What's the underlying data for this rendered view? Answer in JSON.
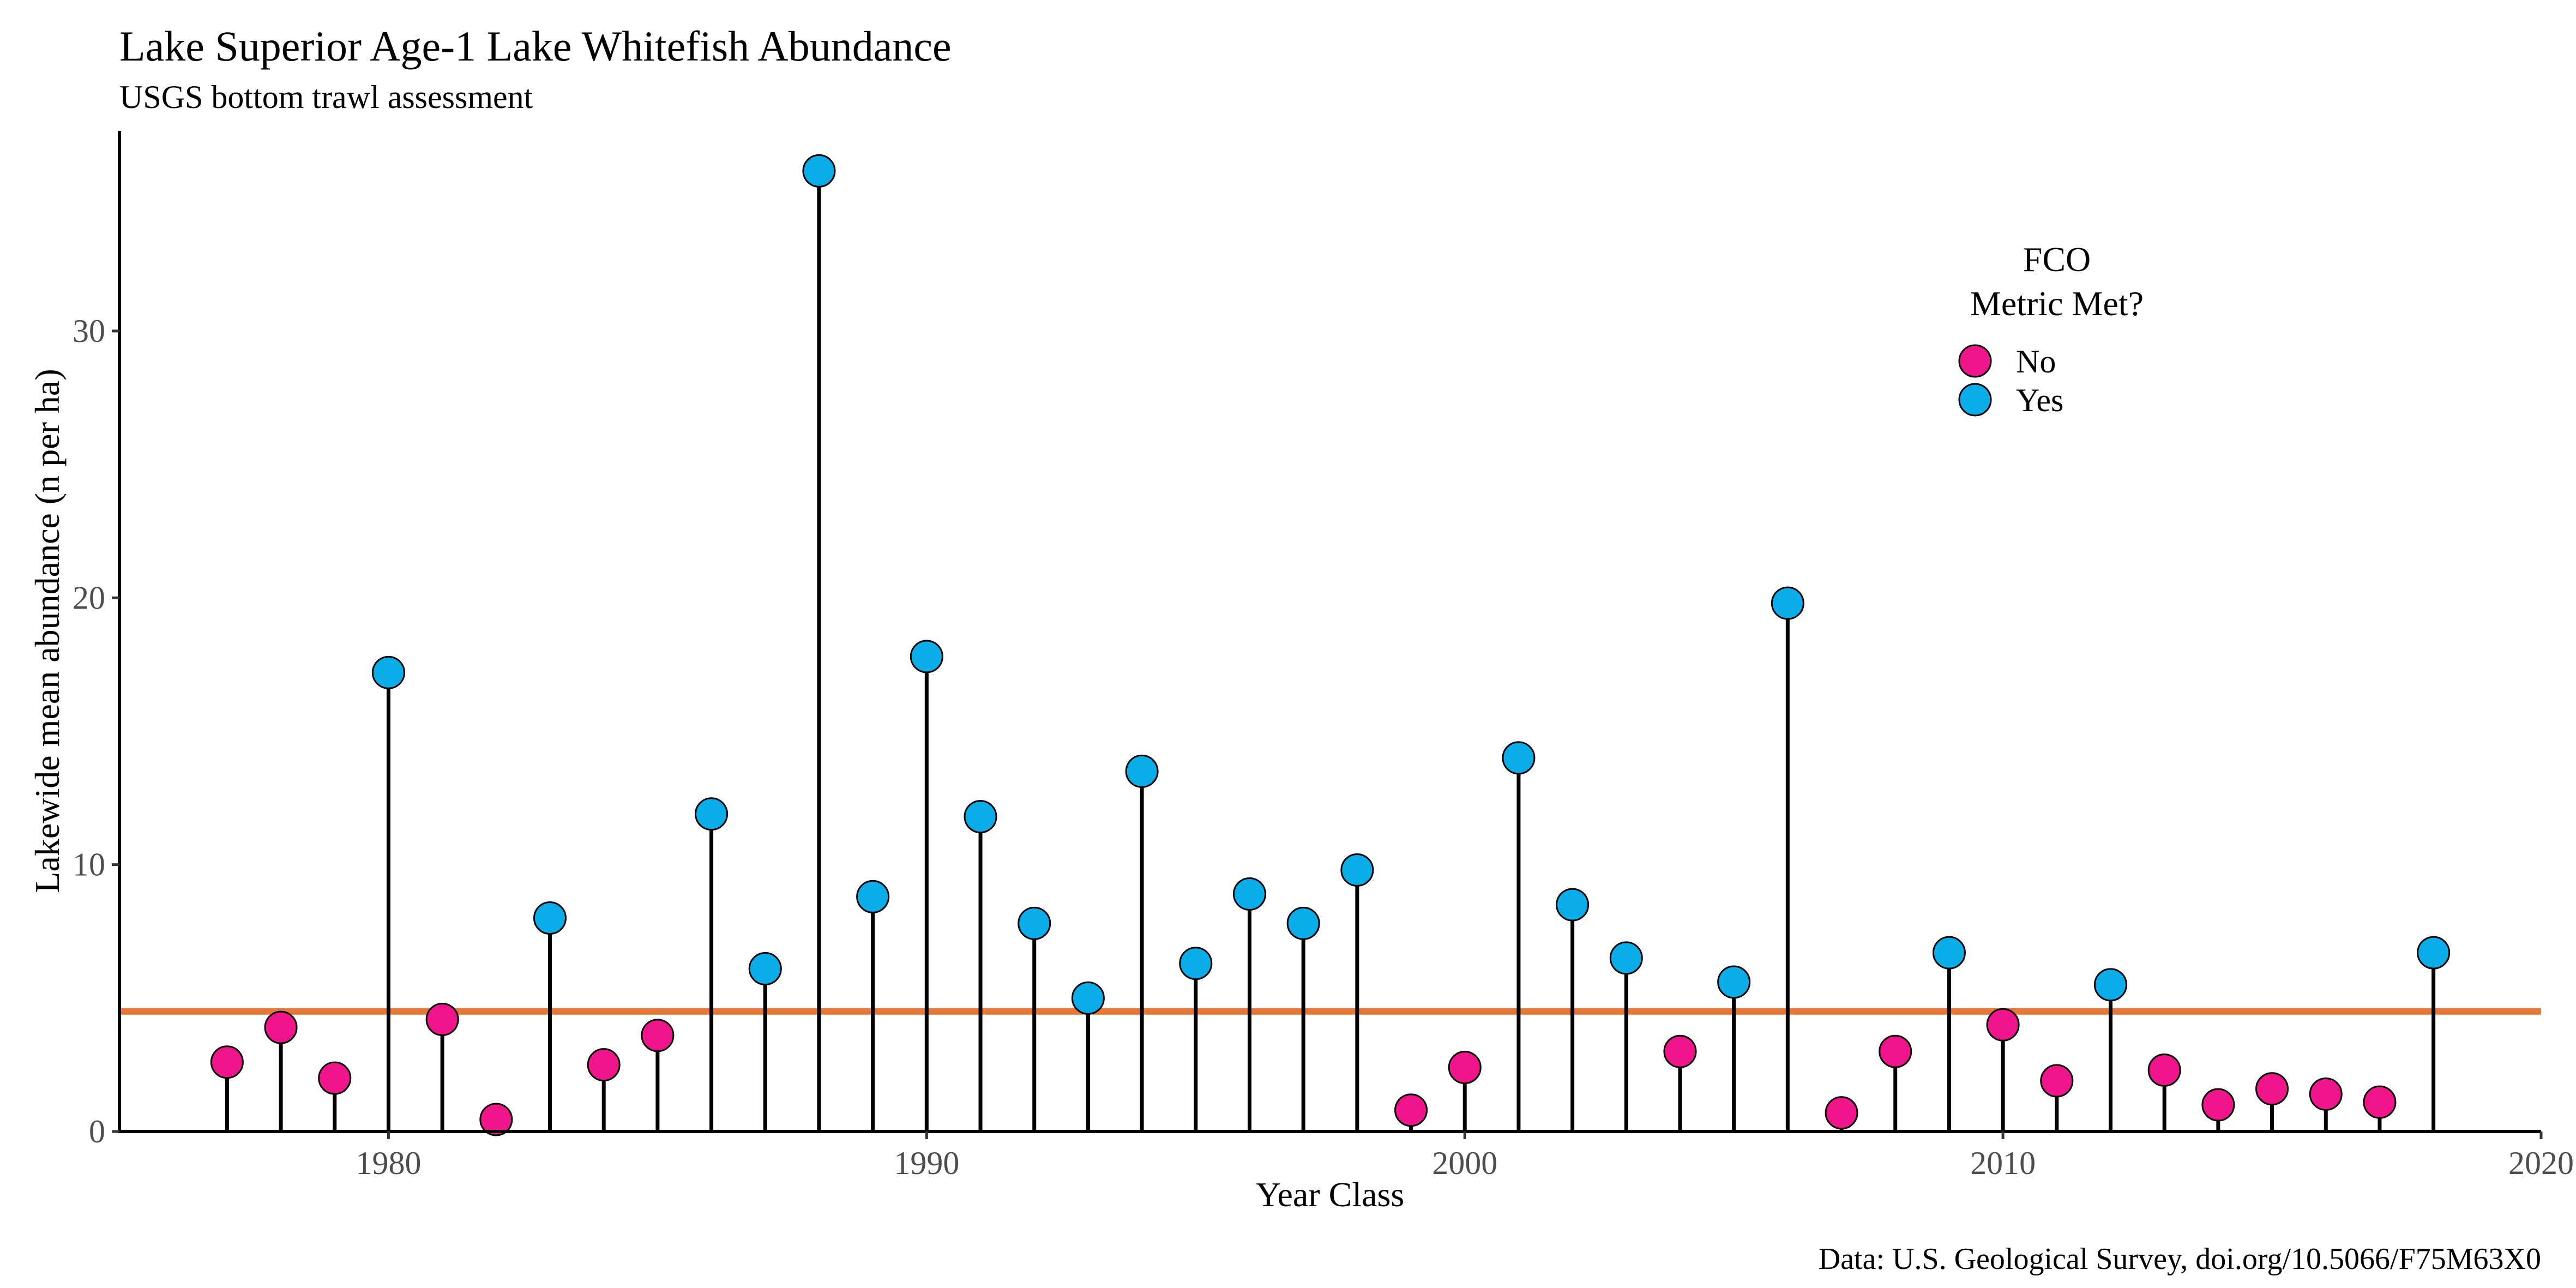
{
  "chart_data": {
    "type": "lollipop",
    "title": "Lake Superior Age-1 Lake Whitefish Abundance",
    "subtitle": "USGS bottom trawl assessment",
    "xlabel": "Year Class",
    "ylabel": "Lakewide mean abundance (n per ha)",
    "caption": "Data: U.S. Geological Survey, doi.org/10.5066/F75M63X0",
    "xlim": [
      1975,
      2020
    ],
    "ylim": [
      0,
      37.5
    ],
    "x_ticks": [
      1980,
      1990,
      2000,
      2010,
      2020
    ],
    "y_ticks": [
      0,
      10,
      20,
      30
    ],
    "reference_line": {
      "y": 4.5,
      "color": "#E8783A"
    },
    "grid": false,
    "legend": {
      "title_lines": [
        "FCO",
        "Metric Met?"
      ],
      "placement": "top-right",
      "entries": [
        {
          "label": "No",
          "color": "#F0158A"
        },
        {
          "label": "Yes",
          "color": "#0AADE8"
        }
      ]
    },
    "colors": {
      "No": "#F0158A",
      "Yes": "#0AADE8",
      "stem": "#000000",
      "point_outline": "#000000"
    },
    "points": [
      {
        "x": 1977,
        "y": 2.6,
        "met": "No"
      },
      {
        "x": 1978,
        "y": 3.9,
        "met": "No"
      },
      {
        "x": 1979,
        "y": 2.0,
        "met": "No"
      },
      {
        "x": 1980,
        "y": 17.2,
        "met": "Yes"
      },
      {
        "x": 1981,
        "y": 4.2,
        "met": "No"
      },
      {
        "x": 1982,
        "y": 0.45,
        "met": "No"
      },
      {
        "x": 1983,
        "y": 8.0,
        "met": "Yes"
      },
      {
        "x": 1984,
        "y": 2.5,
        "met": "No"
      },
      {
        "x": 1985,
        "y": 3.6,
        "met": "No"
      },
      {
        "x": 1986,
        "y": 11.9,
        "met": "Yes"
      },
      {
        "x": 1987,
        "y": 6.1,
        "met": "Yes"
      },
      {
        "x": 1988,
        "y": 36.0,
        "met": "Yes"
      },
      {
        "x": 1989,
        "y": 8.8,
        "met": "Yes"
      },
      {
        "x": 1990,
        "y": 17.8,
        "met": "Yes"
      },
      {
        "x": 1991,
        "y": 11.8,
        "met": "Yes"
      },
      {
        "x": 1992,
        "y": 7.8,
        "met": "Yes"
      },
      {
        "x": 1993,
        "y": 5.0,
        "met": "Yes"
      },
      {
        "x": 1994,
        "y": 13.5,
        "met": "Yes"
      },
      {
        "x": 1995,
        "y": 6.3,
        "met": "Yes"
      },
      {
        "x": 1996,
        "y": 8.9,
        "met": "Yes"
      },
      {
        "x": 1997,
        "y": 7.8,
        "met": "Yes"
      },
      {
        "x": 1998,
        "y": 9.8,
        "met": "Yes"
      },
      {
        "x": 1999,
        "y": 0.8,
        "met": "No"
      },
      {
        "x": 2000,
        "y": 2.4,
        "met": "No"
      },
      {
        "x": 2001,
        "y": 14.0,
        "met": "Yes"
      },
      {
        "x": 2002,
        "y": 8.5,
        "met": "Yes"
      },
      {
        "x": 2003,
        "y": 6.5,
        "met": "Yes"
      },
      {
        "x": 2004,
        "y": 3.0,
        "met": "No"
      },
      {
        "x": 2005,
        "y": 5.6,
        "met": "Yes"
      },
      {
        "x": 2006,
        "y": 19.8,
        "met": "Yes"
      },
      {
        "x": 2007,
        "y": 0.7,
        "met": "No"
      },
      {
        "x": 2008,
        "y": 3.0,
        "met": "No"
      },
      {
        "x": 2009,
        "y": 6.7,
        "met": "Yes"
      },
      {
        "x": 2010,
        "y": 4.0,
        "met": "No"
      },
      {
        "x": 2011,
        "y": 1.9,
        "met": "No"
      },
      {
        "x": 2012,
        "y": 5.5,
        "met": "Yes"
      },
      {
        "x": 2013,
        "y": 2.3,
        "met": "No"
      },
      {
        "x": 2014,
        "y": 1.0,
        "met": "No"
      },
      {
        "x": 2015,
        "y": 1.6,
        "met": "No"
      },
      {
        "x": 2016,
        "y": 1.4,
        "met": "No"
      },
      {
        "x": 2017,
        "y": 1.1,
        "met": "No"
      },
      {
        "x": 2018,
        "y": 6.7,
        "met": "Yes"
      }
    ]
  }
}
